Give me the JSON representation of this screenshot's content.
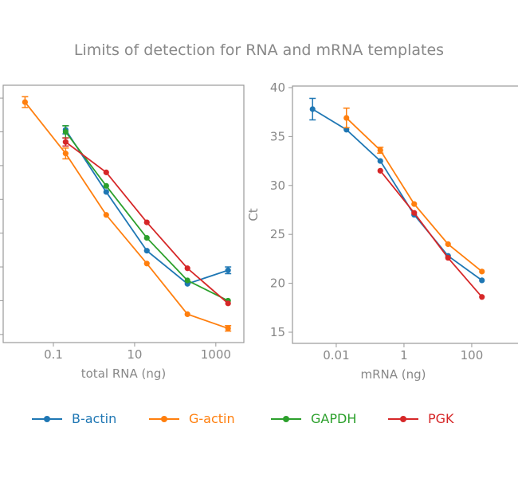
{
  "title": "Limits of detection for RNA and mRNA templates",
  "colors": {
    "B-actin": "#1f77b4",
    "G-actin": "#ff7f0e",
    "GAPDH": "#2ca02c",
    "PGK": "#d62728",
    "axis": "#999999",
    "text": "#888888"
  },
  "legend": {
    "placement": "bottom",
    "items": [
      "B-actin",
      "G-actin",
      "GAPDH",
      "PGK"
    ]
  },
  "chart_data": [
    {
      "type": "line",
      "xlabel": "total RNA (ng)",
      "ylabel": "",
      "xscale": "log",
      "xticks": [
        0.1,
        10,
        1000
      ],
      "xtick_labels": [
        "0.1",
        "10",
        "1000"
      ],
      "yticks": [
        40,
        35,
        30,
        25,
        20,
        15,
        10,
        5
      ],
      "ylim": [
        3.8,
        41.9
      ],
      "xlim": [
        0.0058,
        4900
      ],
      "grid": false,
      "series": [
        {
          "name": "B-actin",
          "x": [
            0.2,
            2,
            20,
            200,
            2000
          ],
          "y": [
            35.3,
            26.1,
            17.4,
            12.5,
            14.5
          ],
          "err": [
            0.6,
            0,
            0,
            0,
            0.5
          ]
        },
        {
          "name": "G-actin",
          "x": [
            0.02,
            0.2,
            2,
            20,
            200,
            2000
          ],
          "y": [
            39.4,
            31.8,
            22.7,
            15.5,
            8.0,
            5.9
          ],
          "err": [
            0.8,
            0.8,
            0,
            0,
            0,
            0.4
          ]
        },
        {
          "name": "GAPDH",
          "x": [
            0.2,
            2,
            20,
            200,
            2000
          ],
          "y": [
            35.0,
            27.0,
            19.3,
            13.0,
            10.0
          ],
          "err": [
            0.9,
            0,
            0,
            0,
            0
          ]
        },
        {
          "name": "PGK",
          "x": [
            0.2,
            2,
            20,
            200,
            2000
          ],
          "y": [
            33.5,
            29.0,
            21.6,
            14.8,
            9.6
          ],
          "err": [
            0.6,
            0,
            0,
            0,
            0
          ]
        }
      ]
    },
    {
      "type": "line",
      "xlabel": "mRNA (ng)",
      "ylabel": "Ct",
      "xscale": "log",
      "xticks": [
        0.01,
        1,
        100
      ],
      "xtick_labels": [
        "0.01",
        "1",
        "100"
      ],
      "yticks": [
        40,
        35,
        30,
        25,
        20,
        15
      ],
      "ytick_labels": [
        "40",
        "35",
        "30",
        "25",
        "20",
        "15"
      ],
      "ylim": [
        13.86,
        40.16
      ],
      "xlim": [
        0.00051,
        6500
      ],
      "grid": false,
      "series": [
        {
          "name": "B-actin",
          "x": [
            0.002,
            0.02,
            0.2,
            2,
            20,
            200
          ],
          "y": [
            37.8,
            35.7,
            32.5,
            27.0,
            22.8,
            20.3
          ],
          "err": [
            1.1,
            0,
            0,
            0,
            0,
            0
          ]
        },
        {
          "name": "G-actin",
          "x": [
            0.02,
            0.2,
            2,
            20,
            200
          ],
          "y": [
            36.9,
            33.6,
            28.1,
            24.0,
            21.2
          ],
          "err": [
            1.0,
            0.3,
            0,
            0,
            0
          ]
        },
        {
          "name": "PGK",
          "x": [
            0.2,
            2,
            20,
            200
          ],
          "y": [
            31.5,
            27.2,
            22.6,
            18.6
          ],
          "err": [
            0,
            0,
            0,
            0
          ]
        }
      ]
    }
  ]
}
